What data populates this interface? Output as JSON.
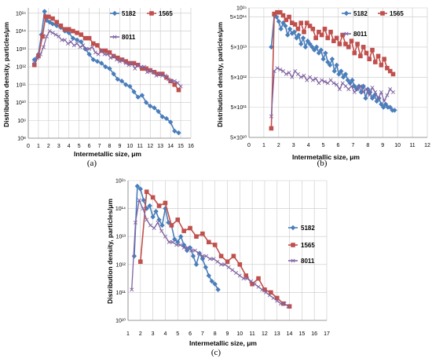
{
  "colors": {
    "5182": "#4a7ebb",
    "1565": "#c0504d",
    "8011": "#8064a2",
    "grid": "#c8c8c8"
  },
  "chart_data": [
    {
      "type": "line",
      "panel_label": "(a)",
      "xlabel": "Intermetallic size, μm",
      "ylabel": "Distribution density, particles/μm",
      "xlim": [
        0,
        16
      ],
      "ylim": [
        8,
        15.3
      ],
      "yscale": "log",
      "xticks": [
        "0",
        "1",
        "2",
        "3",
        "4",
        "5",
        "6",
        "7",
        "8",
        "9",
        "10",
        "11",
        "12",
        "13",
        "14",
        "15",
        "16"
      ],
      "yticks": [
        {
          "v": 8,
          "label": "10⁸"
        },
        {
          "v": 9,
          "label": "10⁹"
        },
        {
          "v": 10,
          "label": "10¹⁰"
        },
        {
          "v": 11,
          "label": "10¹¹"
        },
        {
          "v": 12,
          "label": "10¹²"
        },
        {
          "v": 13,
          "label": "10¹³"
        },
        {
          "v": 14,
          "label": "10¹⁴"
        },
        {
          "v": 15,
          "label": "10¹⁵"
        }
      ],
      "legend_position": "top-right",
      "series": [
        {
          "name": "5182",
          "marker": "diamond",
          "x": [
            0.6,
            1,
            1.3,
            1.6,
            1.8,
            2.1,
            2.4,
            2.8,
            3.2,
            3.6,
            4,
            4.4,
            4.8,
            5.2,
            5.6,
            6,
            6.4,
            6.8,
            7.2,
            7.6,
            8,
            8.4,
            8.8,
            9.2,
            9.6,
            10,
            10.4,
            10.8,
            11.2,
            11.6,
            12,
            12.4,
            12.8,
            13.2,
            13.6,
            14,
            14.4,
            14.8
          ],
          "y": [
            12.4,
            12.7,
            13.8,
            15.1,
            14.6,
            14.5,
            14.4,
            14.3,
            14.2,
            14.0,
            13.9,
            13.6,
            13.5,
            13.4,
            13.0,
            12.7,
            12.4,
            12.3,
            12.2,
            12.0,
            11.9,
            11.6,
            11.3,
            11.2,
            11.0,
            10.9,
            10.6,
            10.3,
            10.4,
            10.0,
            9.8,
            9.7,
            9.5,
            9.2,
            9.1,
            8.9,
            8.4,
            8.3
          ]
        },
        {
          "name": "1565",
          "marker": "square",
          "x": [
            0.6,
            1,
            1.4,
            1.7,
            2,
            2.4,
            2.8,
            3.2,
            3.6,
            4,
            4.4,
            4.8,
            5.2,
            5.6,
            6,
            6.4,
            6.8,
            7.2,
            7.6,
            8,
            8.4,
            8.8,
            9.2,
            9.6,
            10,
            10.4,
            10.8,
            11.2,
            11.6,
            12,
            12.4,
            12.8,
            13.2,
            13.6,
            14,
            14.4,
            14.8
          ],
          "y": [
            12.1,
            12.6,
            13.7,
            14.8,
            14.8,
            14.7,
            14.5,
            14.3,
            14.1,
            14.1,
            14.0,
            13.9,
            13.8,
            13.6,
            13.6,
            13.3,
            13.2,
            12.9,
            12.9,
            12.8,
            12.6,
            12.5,
            12.4,
            12.3,
            12.2,
            12.2,
            12.1,
            11.9,
            11.9,
            11.8,
            11.7,
            11.6,
            11.6,
            11.4,
            11.2,
            11.0,
            10.7
          ]
        },
        {
          "name": "8011",
          "marker": "cross",
          "x": [
            0.6,
            0.9,
            1.2,
            1.5,
            1.8,
            2.1,
            2.4,
            2.7,
            3,
            3.3,
            3.6,
            3.9,
            4.2,
            4.5,
            4.8,
            5.1,
            5.4,
            5.7,
            6,
            6.3,
            6.6,
            6.9,
            7.2,
            7.5,
            7.8,
            8.1,
            8.4,
            8.7,
            9,
            9.3,
            9.6,
            9.9,
            10.2,
            10.5,
            10.8,
            11.1,
            11.4,
            11.7,
            12,
            12.3,
            12.6,
            12.9,
            13.2,
            13.5,
            13.8,
            14.1,
            14.4,
            14.7,
            15
          ],
          "y": [
            12.2,
            12.5,
            12.7,
            13.1,
            13.7,
            14.0,
            13.9,
            13.8,
            13.7,
            13.5,
            13.5,
            13.3,
            13.4,
            13.2,
            13.3,
            13.1,
            13.2,
            13.0,
            13.0,
            13.1,
            12.8,
            12.7,
            12.9,
            12.7,
            12.7,
            12.5,
            12.6,
            12.4,
            12.3,
            12.4,
            12.2,
            12.1,
            12.2,
            11.9,
            12.1,
            12.0,
            12.0,
            11.7,
            11.8,
            11.7,
            11.5,
            11.6,
            11.5,
            11.5,
            11.3,
            11.2,
            11.2,
            11.1,
            10.9
          ]
        }
      ]
    },
    {
      "type": "line",
      "panel_label": "(b)",
      "xlabel": "Intermetallic size, μm",
      "ylabel": "Distribution density, particles/μm",
      "xlim": [
        0,
        12
      ],
      "ylim": [
        10.699,
        15.0
      ],
      "yscale": "log",
      "xticks": [
        "0",
        "1",
        "2",
        "3",
        "4",
        "5",
        "6",
        "7",
        "8",
        "9",
        "10",
        "11",
        "12"
      ],
      "yticks": [
        {
          "v": 10.699,
          "label": "5×10¹⁰"
        },
        {
          "v": 11.699,
          "label": "5×10¹¹"
        },
        {
          "v": 12.699,
          "label": "5×10¹²"
        },
        {
          "v": 13.699,
          "label": "5×10¹³"
        },
        {
          "v": 14.699,
          "label": "5×10¹⁴"
        },
        {
          "v": 15.0,
          "label": "10¹⁵"
        }
      ],
      "legend_position": "top-right",
      "series": [
        {
          "name": "5182",
          "marker": "diamond",
          "x": [
            1.5,
            1.7,
            1.85,
            2,
            2.15,
            2.3,
            2.45,
            2.6,
            2.75,
            2.9,
            3.05,
            3.2,
            3.35,
            3.5,
            3.65,
            3.8,
            3.95,
            4.1,
            4.25,
            4.4,
            4.55,
            4.7,
            4.85,
            5,
            5.15,
            5.3,
            5.45,
            5.6,
            5.75,
            5.9,
            6.05,
            6.2,
            6.35,
            6.5,
            6.65,
            6.8,
            6.95,
            7.1,
            7.25,
            7.4,
            7.55,
            7.7,
            7.85,
            8,
            8.15,
            8.3,
            8.45,
            8.6,
            8.75,
            8.9,
            9.05,
            9.2,
            9.35,
            9.5,
            9.65,
            9.8
          ],
          "y": [
            13.7,
            14.75,
            14.7,
            14.55,
            14.3,
            14.5,
            14.4,
            14.1,
            14.3,
            14.15,
            14.2,
            14.0,
            14.1,
            13.8,
            14.0,
            13.7,
            13.9,
            13.8,
            13.7,
            13.6,
            13.7,
            13.5,
            13.6,
            13.3,
            13.5,
            13.2,
            13.1,
            13.3,
            12.9,
            13.1,
            12.8,
            12.9,
            12.7,
            12.8,
            12.6,
            12.5,
            12.6,
            12.4,
            12.3,
            12.4,
            12.2,
            12.4,
            12.0,
            12.3,
            12.2,
            12.0,
            12.1,
            11.9,
            12.0,
            11.8,
            11.7,
            11.8,
            11.7,
            11.7,
            11.6,
            11.6
          ]
        },
        {
          "name": "1565",
          "marker": "square",
          "x": [
            1.5,
            1.7,
            1.9,
            2.1,
            2.3,
            2.5,
            2.7,
            2.9,
            3.1,
            3.3,
            3.5,
            3.7,
            3.9,
            4.1,
            4.3,
            4.5,
            4.7,
            4.9,
            5.1,
            5.3,
            5.5,
            5.7,
            5.9,
            6.1,
            6.3,
            6.5,
            6.7,
            6.9,
            7.1,
            7.3,
            7.5,
            7.7,
            7.9,
            8.1,
            8.3,
            8.5,
            8.7,
            8.9,
            9.1,
            9.3,
            9.5,
            9.7
          ],
          "y": [
            11.0,
            14.8,
            14.85,
            14.85,
            14.75,
            14.6,
            14.7,
            14.5,
            14.45,
            14.3,
            14.5,
            14.2,
            14.5,
            14.4,
            14.3,
            14.0,
            14.2,
            14.1,
            14.3,
            14.0,
            14.2,
            13.9,
            14.0,
            13.8,
            14.1,
            13.8,
            13.7,
            13.9,
            13.5,
            13.8,
            13.4,
            13.7,
            13.5,
            13.3,
            13.6,
            13.2,
            13.4,
            13.1,
            13.3,
            13.0,
            12.9,
            12.8
          ]
        },
        {
          "name": "8011",
          "marker": "cross",
          "x": [
            1.5,
            1.7,
            1.9,
            2.1,
            2.3,
            2.5,
            2.7,
            2.9,
            3.1,
            3.3,
            3.5,
            3.7,
            3.9,
            4.1,
            4.3,
            4.5,
            4.7,
            4.9,
            5.1,
            5.3,
            5.5,
            5.7,
            5.9,
            6.1,
            6.3,
            6.5,
            6.7,
            6.9,
            7.1,
            7.3,
            7.5,
            7.7,
            7.9,
            8.1,
            8.3,
            8.5,
            8.7,
            8.9,
            9.1,
            9.3,
            9.5,
            9.7
          ],
          "y": [
            11.4,
            12.9,
            13.0,
            12.95,
            12.9,
            12.8,
            12.85,
            12.7,
            12.9,
            12.8,
            12.7,
            12.75,
            12.6,
            12.7,
            12.6,
            12.65,
            12.5,
            12.6,
            12.55,
            12.5,
            12.6,
            12.5,
            12.45,
            12.3,
            12.5,
            12.4,
            12.3,
            12.4,
            12.2,
            12.3,
            12.4,
            12.2,
            12.3,
            12.1,
            12.35,
            12.2,
            12.0,
            12.2,
            11.9,
            12.1,
            12.3,
            12.2
          ]
        }
      ]
    },
    {
      "type": "line",
      "panel_label": "(c)",
      "xlabel": "Intermetallic size, μm",
      "ylabel": "Distribution density, particles/μm",
      "xlim": [
        1,
        17
      ],
      "ylim": [
        10,
        15
      ],
      "yscale": "log",
      "xticks": [
        "1",
        "2",
        "3",
        "4",
        "5",
        "6",
        "7",
        "8",
        "9",
        "10",
        "11",
        "12",
        "13",
        "14",
        "15",
        "16",
        "17"
      ],
      "yticks": [
        {
          "v": 10,
          "label": "10¹⁰"
        },
        {
          "v": 11,
          "label": "10¹¹"
        },
        {
          "v": 12,
          "label": "10¹²"
        },
        {
          "v": 13,
          "label": "10¹³"
        },
        {
          "v": 14,
          "label": "10¹⁴"
        },
        {
          "v": 15,
          "label": "10¹⁵"
        }
      ],
      "legend_position": "right",
      "series": [
        {
          "name": "5182",
          "marker": "diamond",
          "x": [
            1.5,
            1.75,
            2,
            2.25,
            2.5,
            2.75,
            3,
            3.25,
            3.5,
            3.75,
            4,
            4.25,
            4.5,
            4.75,
            5,
            5.25,
            5.5,
            5.75,
            6,
            6.25,
            6.5,
            6.75,
            7,
            7.25,
            7.5,
            7.75,
            8,
            8.25
          ],
          "y": [
            12.3,
            14.8,
            14.7,
            14.3,
            14.0,
            14.1,
            13.7,
            13.9,
            13.6,
            13.4,
            14.0,
            13.5,
            13.4,
            12.9,
            12.8,
            13.0,
            12.7,
            12.5,
            12.6,
            12.3,
            12.0,
            12.4,
            12.2,
            11.9,
            11.6,
            11.4,
            11.3,
            11.1
          ]
        },
        {
          "name": "1565",
          "marker": "square",
          "x": [
            2,
            2.5,
            3,
            3.5,
            4,
            4.5,
            5,
            5.5,
            6,
            6.5,
            7,
            7.5,
            8,
            8.5,
            9,
            9.5,
            10,
            10.5,
            11,
            11.5,
            12,
            12.5,
            13,
            13.5,
            14
          ],
          "y": [
            12.1,
            14.6,
            14.4,
            14.1,
            14.2,
            13.4,
            13.6,
            13.2,
            13.3,
            13.0,
            13.1,
            12.8,
            12.7,
            12.3,
            12.1,
            12.3,
            12.0,
            11.6,
            11.3,
            11.5,
            11.1,
            11.0,
            10.8,
            10.6,
            10.5
          ]
        },
        {
          "name": "8011",
          "marker": "cross",
          "x": [
            1.3,
            1.6,
            1.9,
            2.2,
            2.5,
            2.8,
            3.1,
            3.4,
            3.7,
            4,
            4.3,
            4.6,
            4.9,
            5.2,
            5.5,
            5.8,
            6.1,
            6.4,
            6.7,
            7,
            7.3,
            7.6,
            7.9,
            8.2,
            8.5,
            8.8,
            9.1,
            9.4,
            9.7,
            10,
            10.3,
            10.6,
            10.9,
            11.2,
            11.5,
            11.8,
            12.1,
            12.4,
            12.7,
            13,
            13.3,
            13.6,
            13.9
          ],
          "y": [
            11.1,
            13.5,
            14.3,
            14.0,
            13.6,
            13.4,
            13.3,
            13.5,
            13.2,
            13.0,
            12.8,
            12.8,
            12.7,
            12.7,
            12.6,
            12.6,
            12.5,
            12.5,
            12.4,
            12.3,
            12.3,
            12.2,
            12.2,
            12.1,
            12.0,
            12.0,
            11.9,
            11.8,
            11.7,
            11.6,
            11.5,
            11.5,
            11.4,
            11.3,
            11.2,
            11.1,
            11.0,
            10.9,
            10.8,
            10.7,
            10.6,
            10.6,
            10.5
          ]
        }
      ]
    }
  ]
}
